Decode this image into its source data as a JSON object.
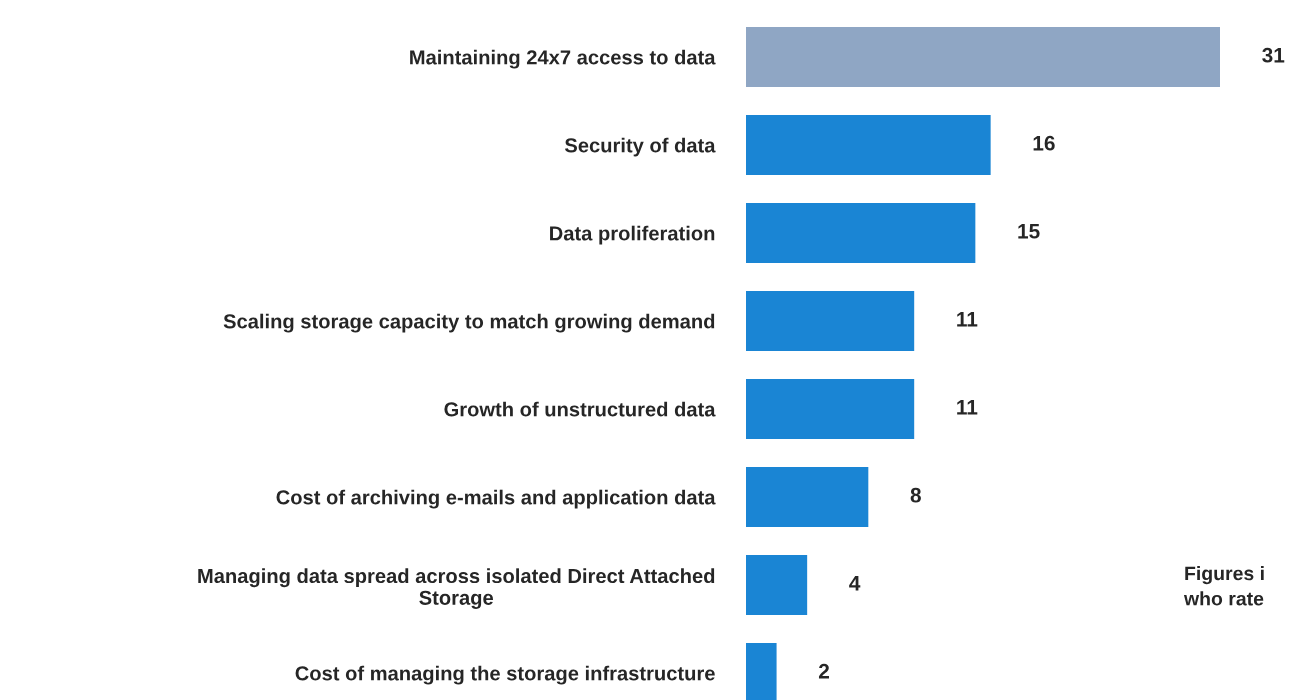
{
  "chart_data": {
    "type": "bar",
    "orientation": "horizontal",
    "data_labels": true,
    "categories": [
      "Maintaining 24x7 access to data",
      "Security of data",
      "Data proliferation",
      "Scaling storage capacity to match growing demand",
      "Growth of unstructured data",
      "Cost of archiving e-mails and application data",
      "Managing data spread across isolated Direct Attached\nStorage",
      "Cost of managing the storage infrastructure"
    ],
    "values": [
      31,
      16,
      15,
      11,
      11,
      8,
      4,
      2
    ],
    "colors": [
      "#8fa6c4",
      "#1a85d4",
      "#1a85d4",
      "#1a85d4",
      "#1a85d4",
      "#1a85d4",
      "#1a85d4",
      "#1a85d4"
    ],
    "annotations": [
      "Figures i\nwho rate"
    ]
  }
}
